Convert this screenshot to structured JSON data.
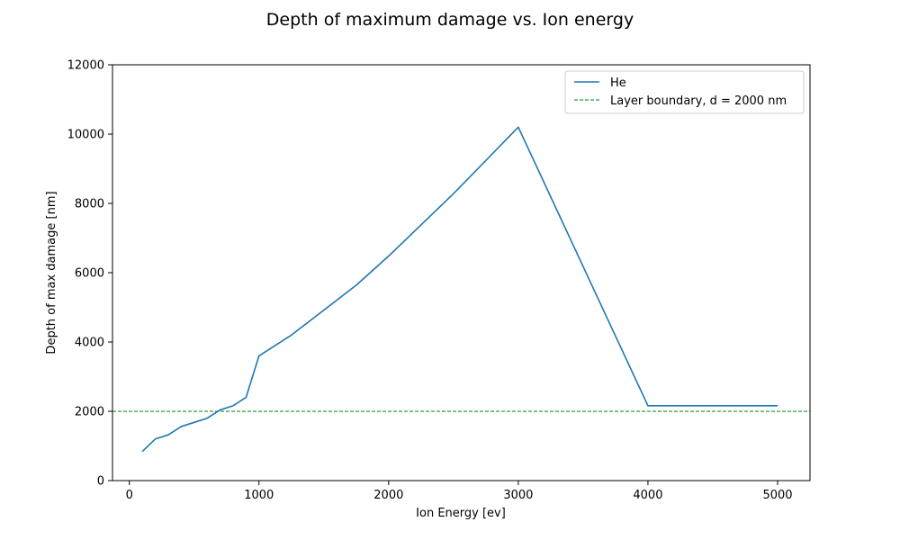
{
  "chart_data": {
    "type": "line",
    "title": "Depth of maximum damage vs. Ion energy",
    "xlabel": "Ion Energy [ev]",
    "ylabel": "Depth of max damage [nm]",
    "xlim": [
      -130,
      5250
    ],
    "ylim": [
      0,
      12000
    ],
    "xticks": [
      0,
      1000,
      2000,
      3000,
      4000,
      5000
    ],
    "xtick_labels": [
      "0",
      "1000",
      "2000",
      "3000",
      "4000",
      "5000"
    ],
    "yticks": [
      0,
      2000,
      4000,
      6000,
      8000,
      10000,
      12000
    ],
    "ytick_labels": [
      "0",
      "2000",
      "4000",
      "6000",
      "8000",
      "10000",
      "12000"
    ],
    "grid": false,
    "legend_position": "top-right",
    "series": [
      {
        "name": "He",
        "color": "#1f77b4",
        "style": "solid",
        "x": [
          100,
          200,
          300,
          400,
          500,
          600,
          700,
          800,
          900,
          1000,
          1250,
          1500,
          1750,
          2000,
          2500,
          3000,
          4000,
          5000
        ],
        "y": [
          840,
          1200,
          1320,
          1560,
          1680,
          1800,
          2040,
          2160,
          2400,
          3600,
          4200,
          4920,
          5640,
          6480,
          8280,
          10200,
          2160,
          2160
        ]
      }
    ],
    "reference_lines": [
      {
        "name": "Layer boundary, d = 2000 nm",
        "orientation": "horizontal",
        "y": 2000,
        "color": "#008000",
        "style": "dashed"
      }
    ]
  }
}
